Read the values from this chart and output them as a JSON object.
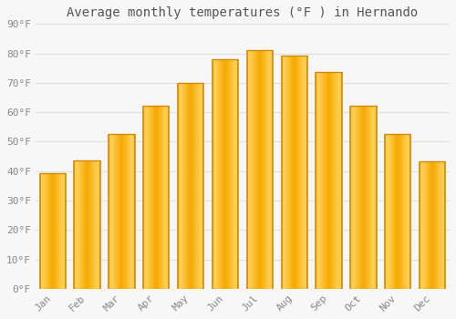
{
  "title": "Average monthly temperatures (°F ) in Hernando",
  "months": [
    "Jan",
    "Feb",
    "Mar",
    "Apr",
    "May",
    "Jun",
    "Jul",
    "Aug",
    "Sep",
    "Oct",
    "Nov",
    "Dec"
  ],
  "values": [
    39.2,
    43.5,
    52.7,
    62.1,
    70.0,
    77.9,
    81.0,
    79.3,
    73.6,
    62.1,
    52.7,
    43.3
  ],
  "bar_color_light": "#FFD055",
  "bar_color_dark": "#F5A800",
  "bar_edge_color": "#D4880A",
  "background_color": "#F7F7F7",
  "grid_color": "#E0E0E0",
  "title_color": "#555555",
  "tick_label_color": "#888888",
  "ylim": [
    0,
    90
  ],
  "yticks": [
    0,
    10,
    20,
    30,
    40,
    50,
    60,
    70,
    80,
    90
  ],
  "ytick_labels": [
    "0°F",
    "10°F",
    "20°F",
    "30°F",
    "40°F",
    "50°F",
    "60°F",
    "70°F",
    "80°F",
    "90°F"
  ],
  "title_fontsize": 10,
  "tick_fontsize": 8,
  "figsize": [
    5.0,
    3.5
  ],
  "dpi": 100,
  "bar_width": 0.75,
  "n_grad_slices": 60
}
